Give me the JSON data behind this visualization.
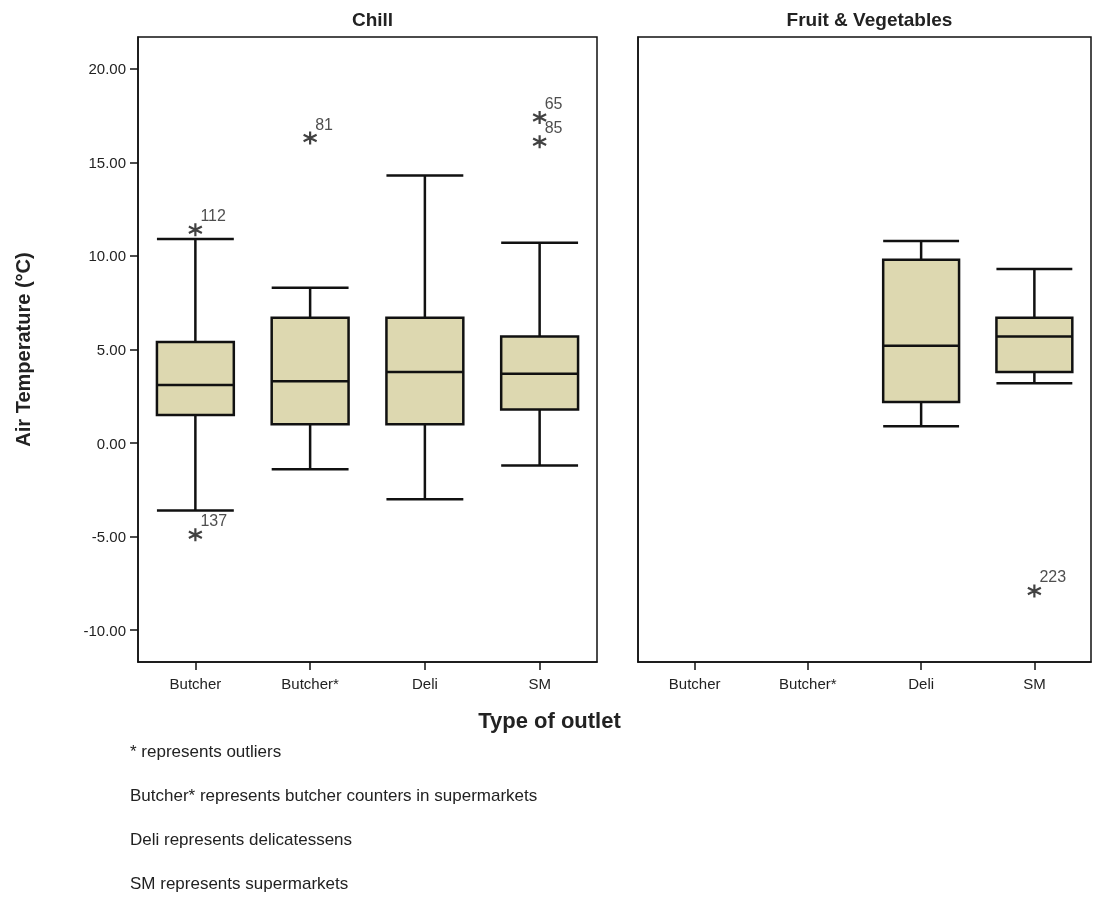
{
  "chart_data": [
    {
      "type": "box",
      "title": "Chill",
      "ylabel": "Air Temperature (°C)",
      "xlabel": "Type of outlet",
      "categories": [
        "Butcher",
        "Butcher*",
        "Deli",
        "SM"
      ],
      "series": [
        {
          "color": "#ddd8b0",
          "boxes": [
            {
              "low": -3.6,
              "q1": 1.5,
              "median": 3.1,
              "q3": 5.4,
              "high": 10.9
            },
            {
              "low": -1.4,
              "q1": 1.0,
              "median": 3.3,
              "q3": 6.7,
              "high": 8.3
            },
            {
              "low": -3.0,
              "q1": 1.0,
              "median": 3.8,
              "q3": 6.7,
              "high": 14.3
            },
            {
              "low": -1.2,
              "q1": 1.8,
              "median": 3.7,
              "q3": 5.7,
              "high": 10.7
            }
          ]
        },
        {
          "type": "scatter",
          "color": "#111111",
          "x": [
            "Butcher",
            "Butcher",
            "Butcher*",
            "SM",
            "SM"
          ],
          "values": [
            11.4,
            -4.9,
            16.3,
            17.4,
            16.1
          ]
        }
      ],
      "ylim": [
        -11.7,
        21.7
      ],
      "yticks": [
        {
          "value": -10,
          "label": "-10.00"
        },
        {
          "value": -5,
          "label": "-5.00"
        },
        {
          "value": 0,
          "label": "0.00"
        },
        {
          "value": 5,
          "label": "5.00"
        },
        {
          "value": 10,
          "label": "10.00"
        },
        {
          "value": 15,
          "label": "15.00"
        },
        {
          "value": 20,
          "label": "20.00"
        }
      ],
      "annotations": [
        {
          "text": "112",
          "x": "Butcher",
          "y": 11.4
        },
        {
          "text": "137",
          "x": "Butcher",
          "y": -4.9
        },
        {
          "text": "81",
          "x": "Butcher*",
          "y": 16.3
        },
        {
          "text": "65",
          "x": "SM",
          "y": 17.4
        },
        {
          "text": "85",
          "x": "SM",
          "y": 16.1
        },
        "* represents outliers",
        "Butcher* represents butcher counters in supermarkets",
        "Deli represents delicatessens",
        "SM represents supermarkets"
      ],
      "grid": false
    },
    {
      "type": "box",
      "title": "Fruit & Vegetables",
      "categories": [
        "Butcher",
        "Butcher*",
        "Deli",
        "SM"
      ],
      "series": [
        {
          "color": "#ddd8b0",
          "boxes": [
            null,
            null,
            {
              "low": 0.9,
              "q1": 2.2,
              "median": 5.2,
              "q3": 9.8,
              "high": 10.8
            },
            {
              "low": 3.2,
              "q1": 3.8,
              "median": 5.7,
              "q3": 6.7,
              "high": 9.3
            }
          ]
        },
        {
          "type": "scatter",
          "color": "#111111",
          "x": [
            "SM"
          ],
          "values": [
            -7.9
          ]
        }
      ],
      "ylim": [
        -11.7,
        21.7
      ],
      "tick_labels": "x",
      "annotations": [
        {
          "text": "223",
          "x": "SM",
          "y": -7.9
        }
      ],
      "grid": false
    }
  ]
}
